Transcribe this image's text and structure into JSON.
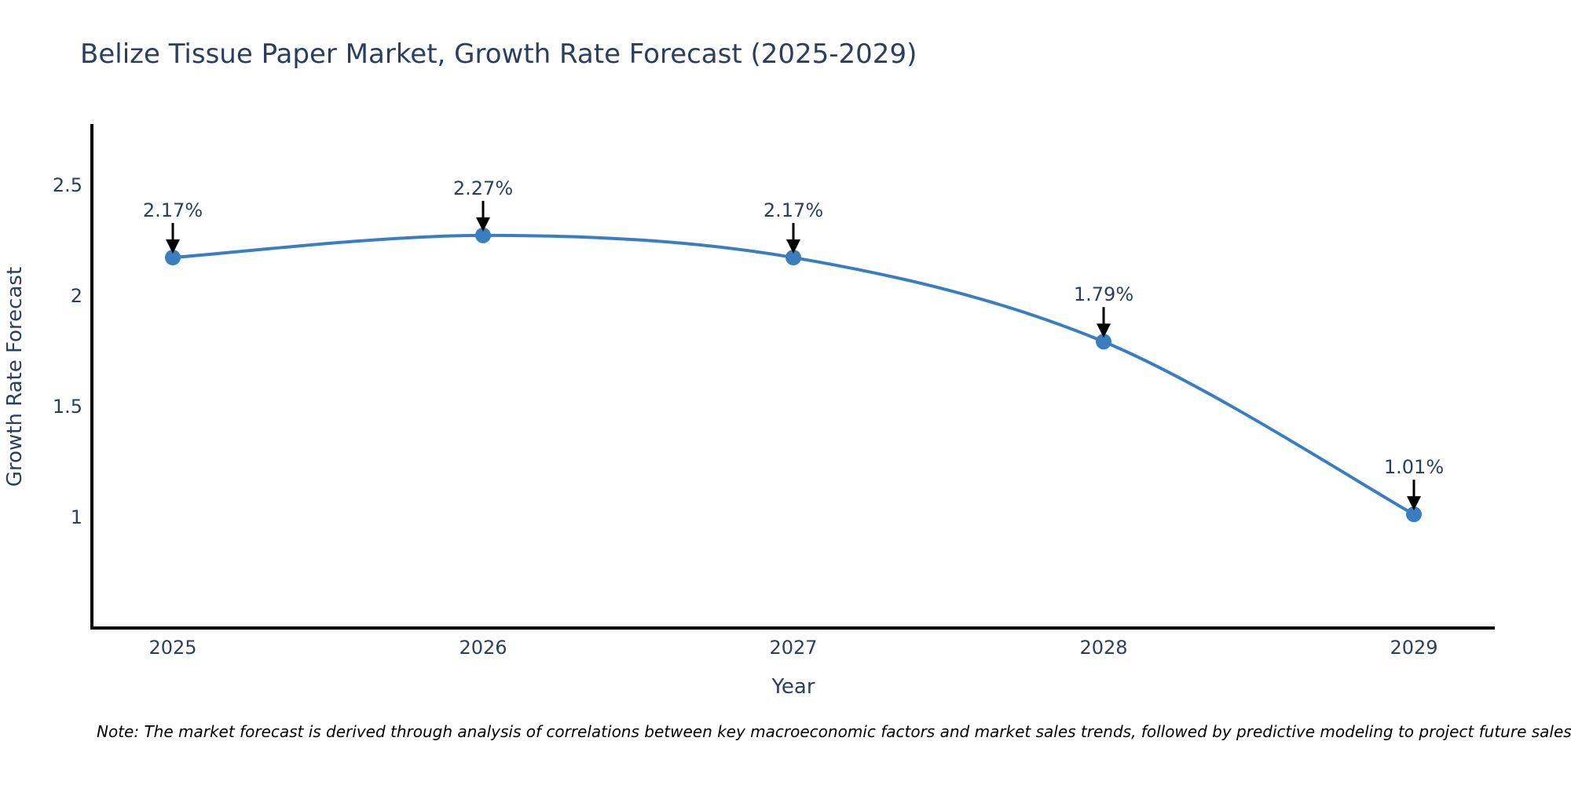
{
  "title": "Belize Tissue Paper Market, Growth Rate Forecast (2025-2029)",
  "note": "Note: The market forecast is derived through analysis of correlations between key macroeconomic factors and market sales trends, followed by predictive modeling to project future sales",
  "colors": {
    "line": "#3a7ebf",
    "marker": "#3a7ebf",
    "text": "#2a3f5f",
    "axis": "#000000",
    "arrow": "#000000",
    "background": "#ffffff"
  },
  "chart_data": {
    "type": "line",
    "line_shape": "spline",
    "title": "Belize Tissue Paper Market, Growth Rate Forecast (2025-2029)",
    "xlabel": "Year",
    "ylabel": "Growth Rate Forecast",
    "categories": [
      "2025",
      "2026",
      "2027",
      "2028",
      "2029"
    ],
    "values": [
      2.17,
      2.27,
      2.17,
      1.79,
      1.01
    ],
    "point_labels": [
      "2.17%",
      "2.27%",
      "2.17%",
      "1.79%",
      "1.01%"
    ],
    "yticks": [
      1,
      1.5,
      2,
      2.5
    ],
    "ylim": [
      0.5,
      2.77
    ],
    "grid": false,
    "legend_position": "none",
    "markers": true,
    "annotations_have_arrows": true
  }
}
